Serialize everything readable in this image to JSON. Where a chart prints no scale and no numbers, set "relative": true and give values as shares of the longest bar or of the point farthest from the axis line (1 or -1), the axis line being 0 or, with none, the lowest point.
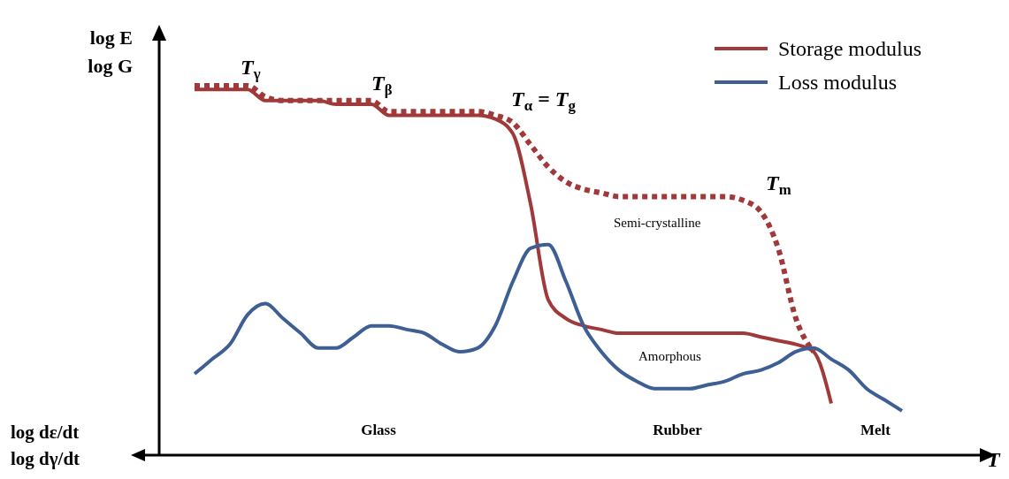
{
  "chart_data": {
    "type": "line",
    "relative": true,
    "ylabel": "log E\nlog G",
    "xlabel": "T",
    "legend": "top right",
    "line_style": "solid",
    "categories": [
      null,
      null,
      null,
      null,
      null,
      null,
      null,
      null,
      null,
      null,
      null,
      null,
      null,
      null,
      null,
      null,
      null,
      null,
      null,
      null,
      null,
      null,
      null,
      null,
      null,
      null,
      null,
      null,
      null,
      null,
      null,
      null,
      null,
      null,
      null,
      null,
      null,
      null,
      null,
      null,
      null
    ],
    "series": [
      {
        "name": "Storage modulus",
        "color": "#a0393a",
        "values": [
          0.99,
          0.99,
          0.99,
          0.99,
          0.96,
          0.96,
          0.96,
          0.96,
          0.95,
          0.95,
          0.95,
          0.92,
          0.92,
          0.92,
          0.92,
          0.92,
          0.92,
          0.91,
          0.87,
          0.68,
          0.42,
          0.37,
          0.35,
          0.34,
          0.33,
          0.33,
          0.33,
          0.33,
          0.33,
          0.33,
          0.33,
          0.33,
          0.32,
          0.31,
          0.3,
          0.28,
          0.14,
          null,
          null,
          null,
          null
        ]
      },
      {
        "color": "#a0393a",
        "line_style": "dotted",
        "values": [
          1.0,
          1.0,
          1.0,
          1.0,
          0.97,
          0.96,
          0.96,
          0.96,
          0.96,
          0.96,
          0.96,
          0.93,
          0.93,
          0.93,
          0.93,
          0.93,
          0.93,
          0.92,
          0.9,
          0.84,
          0.78,
          0.74,
          0.72,
          0.71,
          0.7,
          0.7,
          0.7,
          0.7,
          0.7,
          0.7,
          0.7,
          0.69,
          0.66,
          0.56,
          0.37,
          0.28,
          null,
          null,
          null,
          null,
          null
        ]
      },
      {
        "name": "Loss modulus",
        "color": "#3d5f94",
        "values": [
          0.22,
          0.26,
          0.3,
          0.38,
          0.41,
          0.37,
          0.33,
          0.29,
          0.29,
          0.32,
          0.35,
          0.35,
          0.34,
          0.33,
          0.3,
          0.28,
          0.29,
          0.35,
          0.47,
          0.56,
          0.57,
          0.47,
          0.35,
          0.28,
          0.23,
          0.2,
          0.18,
          0.18,
          0.18,
          0.19,
          0.2,
          0.22,
          0.23,
          0.25,
          0.28,
          0.29,
          0.26,
          0.23,
          0.18,
          0.15,
          0.12
        ]
      }
    ],
    "annotations": [
      "T$_{γ}$",
      "T$_{β}$",
      "T$_{α}$ = T$_{g}$",
      "T$_{m}$",
      "Semi-crystalline",
      "Amorphous",
      "Glass",
      "Rubber",
      "Melt",
      "log dε/dt\nlog dγ/dt"
    ]
  }
}
